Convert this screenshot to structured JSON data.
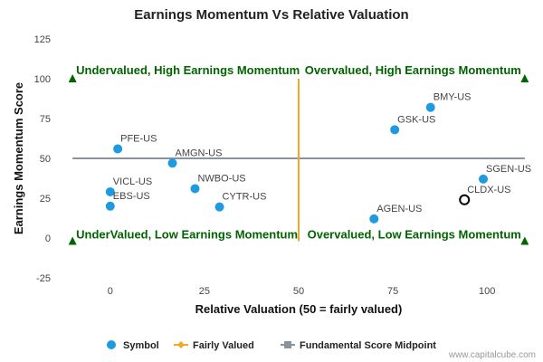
{
  "chart_data": {
    "type": "scatter",
    "title": "Earnings Momentum Vs Relative Valuation",
    "xlabel": "Relative Valuation (50 = fairly valued)",
    "ylabel": "Earnings Momentum Score",
    "xlim": [
      -11,
      111
    ],
    "ylim": [
      -25,
      125
    ],
    "xticks": [
      0,
      25,
      50,
      75,
      100
    ],
    "yticks": [
      -25,
      0,
      25,
      50,
      75,
      100,
      125
    ],
    "grid": false,
    "legend_position": "bottom",
    "points": [
      {
        "label": "BMY-US",
        "x": 85,
        "y": 82
      },
      {
        "label": "GSK-US",
        "x": 75.5,
        "y": 68
      },
      {
        "label": "PFE-US",
        "x": 2,
        "y": 56
      },
      {
        "label": "AMGN-US",
        "x": 16.5,
        "y": 47
      },
      {
        "label": "SGEN-US",
        "x": 99,
        "y": 37
      },
      {
        "label": "NWBO-US",
        "x": 22.5,
        "y": 31
      },
      {
        "label": "VICL-US",
        "x": 0,
        "y": 29
      },
      {
        "label": "EBS-US",
        "x": 0,
        "y": 20
      },
      {
        "label": "CYTR-US",
        "x": 29,
        "y": 19.5
      },
      {
        "label": "AGEN-US",
        "x": 70,
        "y": 12
      },
      {
        "label": "CLDX-US",
        "x": 94,
        "y": 24,
        "highlighted": true
      }
    ],
    "fairly_valued_line": {
      "x": 50,
      "y_range": [
        -2,
        100
      ]
    },
    "midpoint_line": {
      "y": 50,
      "x_range": [
        -10,
        110
      ]
    },
    "quadrant_labels": [
      {
        "text": "Undervalued, High Earnings Momentum",
        "position": "top-left"
      },
      {
        "text": "Overvalued, High Earnings Momentum",
        "position": "top-right"
      },
      {
        "text": "UnderValued, Low Earnings Momentum",
        "position": "bottom-left"
      },
      {
        "text": "Overvalued, Low Earnings Momentum",
        "position": "bottom-right"
      }
    ],
    "quadrant_markers": [
      {
        "x": -10,
        "y": 100
      },
      {
        "x": 110,
        "y": 100
      },
      {
        "x": -10,
        "y": -2
      },
      {
        "x": 110,
        "y": -2
      }
    ],
    "legend": [
      {
        "label": "Symbol",
        "marker": "circle",
        "color": "#1e9be0"
      },
      {
        "label": "Fairly Valued",
        "marker": "line-diamond",
        "color": "#f5a623"
      },
      {
        "label": "Fundamental Score Midpoint",
        "marker": "line-square",
        "color": "#8a929b"
      }
    ]
  },
  "colors": {
    "point": "#1e9be0",
    "highlight_stroke": "#000000",
    "fairly_valued": "#f5a623",
    "midpoint": "#8a929b",
    "quadrant_text": "#006400",
    "marker": "#006400"
  },
  "credit": "www.capitalcube.com"
}
